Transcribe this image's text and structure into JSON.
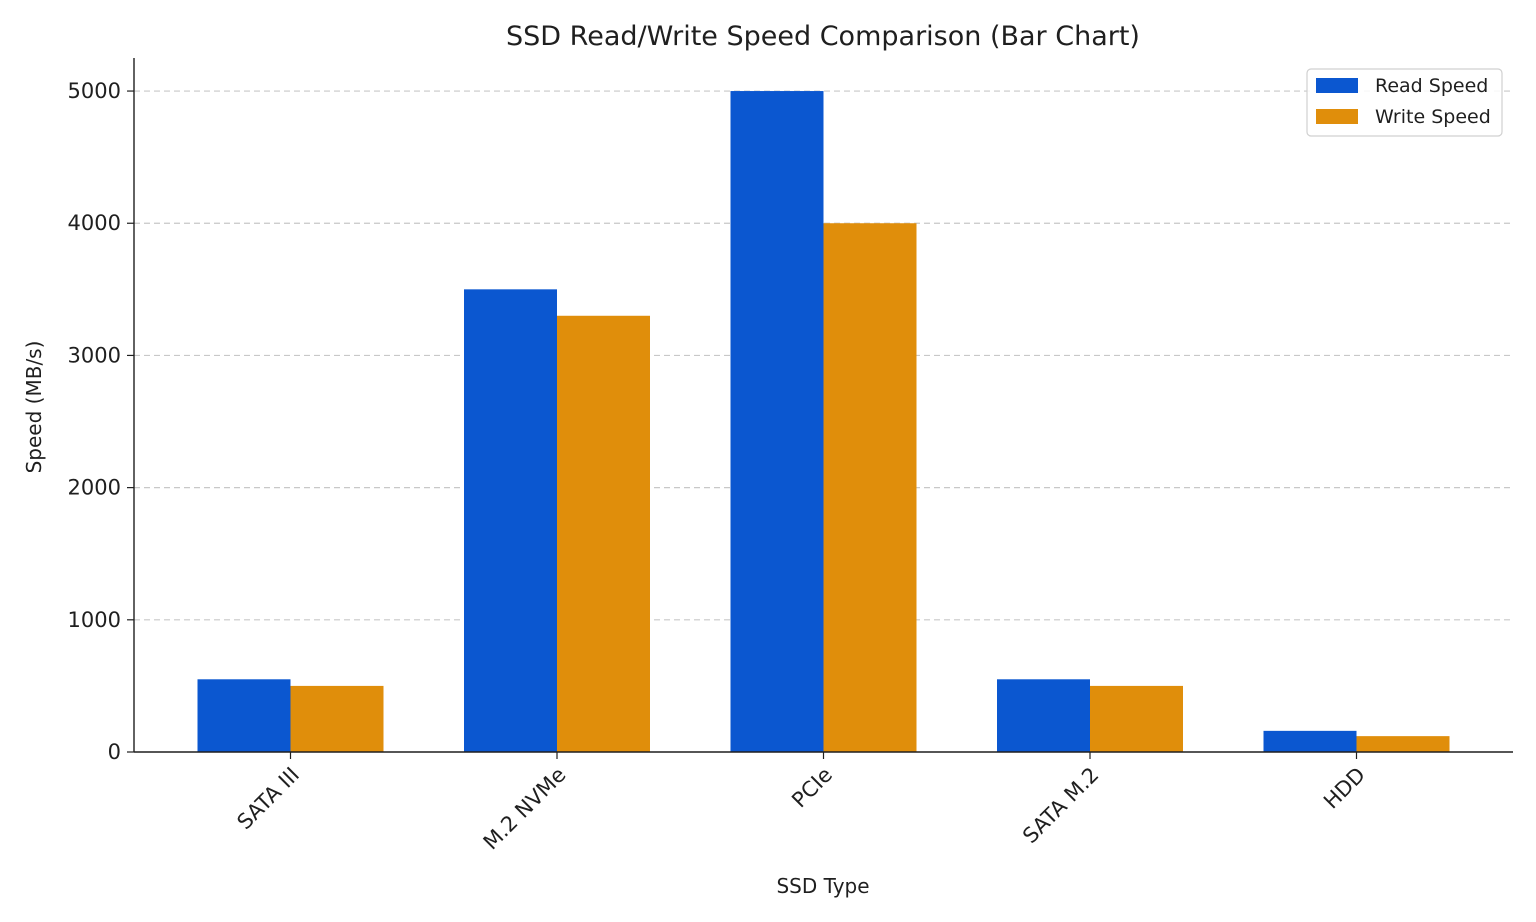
{
  "chart_data": {
    "type": "bar",
    "title": "SSD Read/Write Speed Comparison (Bar Chart)",
    "xlabel": "SSD Type",
    "ylabel": "Speed (MB/s)",
    "categories": [
      "SATA III",
      "M.2 NVMe",
      "PCIe",
      "SATA M.2",
      "HDD"
    ],
    "series": [
      {
        "name": "Read Speed",
        "values": [
          550,
          3500,
          5000,
          550,
          160
        ],
        "color": "#0b57d0"
      },
      {
        "name": "Write Speed",
        "values": [
          500,
          3300,
          4000,
          500,
          120
        ],
        "color": "#e08e0b"
      }
    ],
    "ylim": [
      0,
      5250
    ],
    "yticks": [
      0,
      1000,
      2000,
      3000,
      4000,
      5000
    ],
    "grid": "y-dashed",
    "legend_position": "top-right"
  }
}
